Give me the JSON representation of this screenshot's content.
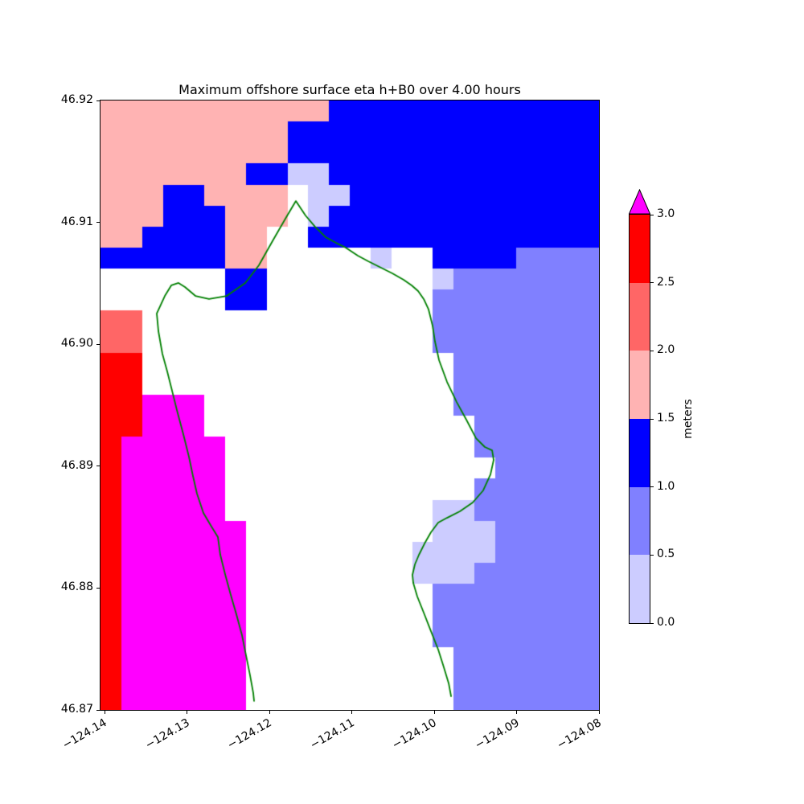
{
  "title": "Maximum offshore surface eta h+B0 over 4.00 hours",
  "chart_data": {
    "type": "heatmap",
    "title": "Maximum offshore surface eta h+B0 over 4.00 hours",
    "xlabel": "",
    "ylabel": "",
    "xlim": [
      -124.1405,
      -124.08
    ],
    "ylim": [
      46.87,
      46.92
    ],
    "xticks": [
      -124.14,
      -124.13,
      -124.12,
      -124.11,
      -124.1,
      -124.09,
      -124.08
    ],
    "xtick_labels": [
      "−124.14",
      "−124.13",
      "−124.12",
      "−124.11",
      "−124.10",
      "−124.09",
      "−124.08"
    ],
    "yticks": [
      46.92,
      46.91,
      46.9,
      46.89,
      46.88,
      46.87
    ],
    "ytick_labels": [
      "46.92",
      "46.91",
      "46.90",
      "46.89",
      "46.88",
      "46.87"
    ],
    "grid": {
      "description": "Maximum offshore surface eta (meters) on a 24x29 cell mesh, rows ordered north to south; '.' = no data (dry land, shown white)",
      "cells": [
        "dddddddddddccccccccccccc",
        "dddddddddccccccccccccccc",
        "dddddddddccccccccccccccc",
        "dddddddccaaccccccccccccc",
        "dddccdddd.aacccccccccccc",
        "dddcccddd.accccccccccccc",
        "ddccccdd..cccccccccccccc",
        "ccccccdd.....a..ccccbbbb",
        "......cc........abbbbbbb",
        "......cc........bbbbbbbb",
        "ee..............bbbbbbbb",
        "ee..............bbbbbbbb",
        "ff...............bbbbbbb",
        "ff...............bbbbbbb",
        "ffggg............bbbbbbb",
        "ffggg.............bbbbbb",
        "fggggg............bbbbbb",
        "fggggg.............bbbbb",
        "fggggg............bbbbbb",
        "fggggg..........aabbbbbb",
        "fgggggg.........aaabbbbb",
        "fgggggg........aaaabbbbb",
        "fgggggg........aaabbbbbb",
        "fgggggg.........bbbbbbbb",
        "fgggggg.........bbbbbbbb",
        "fgggggg.........bbbbbbbb",
        "fgggggg..........bbbbbbb",
        "fgggggg..........bbbbbbb",
        "fgggggg..........bbbbbbb"
      ]
    },
    "colormap": [
      {
        "code": "a",
        "range": [
          0.0,
          0.5
        ],
        "color": "#ccccff"
      },
      {
        "code": "b",
        "range": [
          0.5,
          1.0
        ],
        "color": "#8080ff"
      },
      {
        "code": "c",
        "range": [
          1.0,
          1.5
        ],
        "color": "#0000ff"
      },
      {
        "code": "d",
        "range": [
          1.5,
          2.0
        ],
        "color": "#ffb3b3"
      },
      {
        "code": "e",
        "range": [
          2.0,
          2.5
        ],
        "color": "#ff6666"
      },
      {
        "code": "f",
        "range": [
          2.5,
          3.0
        ],
        "color": "#ff0000"
      },
      {
        "code": "g",
        "range": [
          3.0,
          null
        ],
        "color": "#ff00ff"
      },
      {
        "code": ".",
        "range": null,
        "color": null
      }
    ],
    "coastline": {
      "color": "#008000",
      "points": [
        [
          -124.12186,
          46.87073
        ],
        [
          -124.12196,
          46.87139
        ],
        [
          -124.12235,
          46.87284
        ],
        [
          -124.12284,
          46.87449
        ],
        [
          -124.12333,
          46.87614
        ],
        [
          -124.12401,
          46.87785
        ],
        [
          -124.12469,
          46.87943
        ],
        [
          -124.12538,
          46.88115
        ],
        [
          -124.12596,
          46.88273
        ],
        [
          -124.12625,
          46.88418
        ],
        [
          -124.12703,
          46.88504
        ],
        [
          -124.12801,
          46.88616
        ],
        [
          -124.12879,
          46.88774
        ],
        [
          -124.12928,
          46.8892
        ],
        [
          -124.12977,
          46.89078
        ],
        [
          -124.13045,
          46.89262
        ],
        [
          -124.13123,
          46.8946
        ],
        [
          -124.13191,
          46.89645
        ],
        [
          -124.1324,
          46.89777
        ],
        [
          -124.13299,
          46.89922
        ],
        [
          -124.13347,
          46.90107
        ],
        [
          -124.13367,
          46.90252
        ],
        [
          -124.13269,
          46.90397
        ],
        [
          -124.13191,
          46.90483
        ],
        [
          -124.13103,
          46.90503
        ],
        [
          -124.13025,
          46.9047
        ],
        [
          -124.12898,
          46.90397
        ],
        [
          -124.12733,
          46.90371
        ],
        [
          -124.12518,
          46.90397
        ],
        [
          -124.12293,
          46.90503
        ],
        [
          -124.12128,
          46.90648
        ],
        [
          -124.11952,
          46.90859
        ],
        [
          -124.11806,
          46.9103
        ],
        [
          -124.11679,
          46.91175
        ],
        [
          -124.11562,
          46.91057
        ],
        [
          -124.11445,
          46.90964
        ],
        [
          -124.11318,
          46.90879
        ],
        [
          -124.11191,
          46.90832
        ],
        [
          -124.11074,
          46.90793
        ],
        [
          -124.10927,
          46.90727
        ],
        [
          -124.108,
          46.90681
        ],
        [
          -124.10664,
          46.90635
        ],
        [
          -124.10508,
          46.90582
        ],
        [
          -124.10371,
          46.90529
        ],
        [
          -124.10273,
          46.90483
        ],
        [
          -124.10195,
          46.90437
        ],
        [
          -124.10127,
          46.90371
        ],
        [
          -124.10068,
          46.90285
        ],
        [
          -124.1002,
          46.90153
        ],
        [
          -124.0999,
          46.90021
        ],
        [
          -124.09941,
          46.89869
        ],
        [
          -124.09844,
          46.89691
        ],
        [
          -124.09727,
          46.89526
        ],
        [
          -124.0961,
          46.89381
        ],
        [
          -124.09492,
          46.89229
        ],
        [
          -124.09385,
          46.89157
        ],
        [
          -124.09297,
          46.8913
        ],
        [
          -124.09278,
          46.89051
        ],
        [
          -124.09317,
          46.88932
        ],
        [
          -124.09405,
          46.88801
        ],
        [
          -124.09532,
          46.88702
        ],
        [
          -124.09688,
          46.88629
        ],
        [
          -124.09844,
          46.88576
        ],
        [
          -124.09951,
          46.88537
        ],
        [
          -124.10039,
          46.88458
        ],
        [
          -124.10117,
          46.88365
        ],
        [
          -124.10185,
          46.88273
        ],
        [
          -124.10234,
          46.88194
        ],
        [
          -124.10264,
          46.88108
        ],
        [
          -124.10254,
          46.88042
        ],
        [
          -124.10205,
          46.8793
        ],
        [
          -124.10127,
          46.87798
        ],
        [
          -124.10039,
          46.87646
        ],
        [
          -124.09951,
          46.87495
        ],
        [
          -124.09883,
          46.8735
        ],
        [
          -124.09824,
          46.87218
        ],
        [
          -124.09795,
          46.87112
        ]
      ]
    },
    "colorbar": {
      "label": "meters",
      "levels": [
        0.0,
        0.5,
        1.0,
        1.5,
        2.0,
        2.5,
        3.0
      ],
      "tick_labels": [
        "0.0",
        "0.5",
        "1.0",
        "1.5",
        "2.0",
        "2.5",
        "3.0"
      ],
      "colors": [
        "#ccccff",
        "#8080ff",
        "#0000ff",
        "#ffb3b3",
        "#ff6666",
        "#ff0000"
      ],
      "over_color": "#ff00ff",
      "extend": "max"
    }
  }
}
